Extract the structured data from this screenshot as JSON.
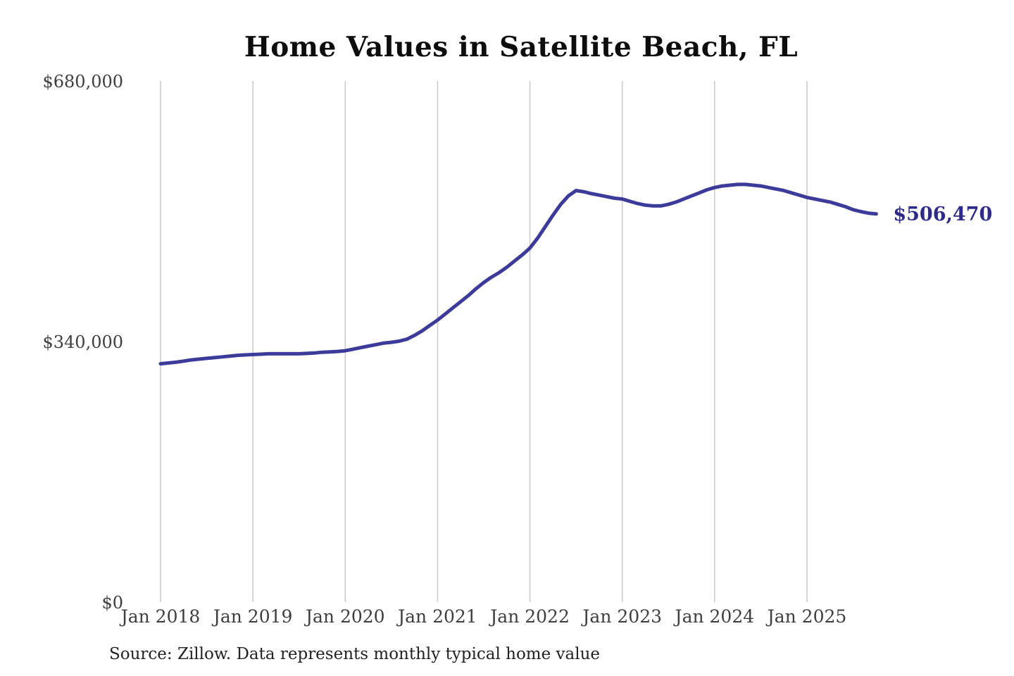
{
  "title": "Home Values in Satellite Beach, FL",
  "source_note": "Source: Zillow. Data represents monthly typical home value",
  "colors": {
    "line": "#3d3b99",
    "value_label": "#2d2b87",
    "grid": "#c9c9c9",
    "axis_text": "#3e3e3e",
    "title_text": "#0d0d0d",
    "source_text": "#222222",
    "background": "#ffffff"
  },
  "chart_data": {
    "type": "line",
    "title": "Home Values in Satellite Beach, FL",
    "xlabel": "",
    "ylabel": "",
    "x_frequency": "monthly",
    "x_start": "Jan 2018",
    "x_end": "Oct 2025",
    "x_tick_labels": [
      "Jan 2018",
      "Jan 2019",
      "Jan 2020",
      "Jan 2021",
      "Jan 2022",
      "Jan 2023",
      "Jan 2024",
      "Jan 2025"
    ],
    "y_tick_labels": [
      "$0",
      "$340,000",
      "$680,000"
    ],
    "y_tick_values": [
      0,
      340000,
      680000
    ],
    "ylim": [
      0,
      680000
    ],
    "grid": "vertical-only",
    "legend": "none",
    "final_value": 506470,
    "final_value_label": "$506,470",
    "values": [
      311000,
      312000,
      313000,
      314500,
      316000,
      317000,
      318000,
      319000,
      320000,
      321000,
      322000,
      322500,
      323000,
      323500,
      324000,
      324000,
      324000,
      324000,
      324000,
      324500,
      325000,
      326000,
      326500,
      327000,
      328000,
      330000,
      332000,
      334000,
      336000,
      338000,
      339000,
      340500,
      343000,
      348000,
      354000,
      361000,
      368000,
      376000,
      384000,
      392000,
      400000,
      409000,
      417000,
      424000,
      430000,
      437000,
      445000,
      453000,
      462000,
      475000,
      490000,
      505000,
      519000,
      530000,
      537000,
      535500,
      533000,
      531000,
      529000,
      527000,
      526000,
      523000,
      520000,
      518000,
      517000,
      517000,
      519000,
      522000,
      526000,
      530000,
      534000,
      538000,
      541000,
      543000,
      544000,
      545000,
      545000,
      544000,
      543000,
      541000,
      539000,
      537000,
      534000,
      531000,
      528000,
      526000,
      524000,
      522000,
      519000,
      516000,
      512000,
      509500,
      507500,
      506470
    ]
  }
}
